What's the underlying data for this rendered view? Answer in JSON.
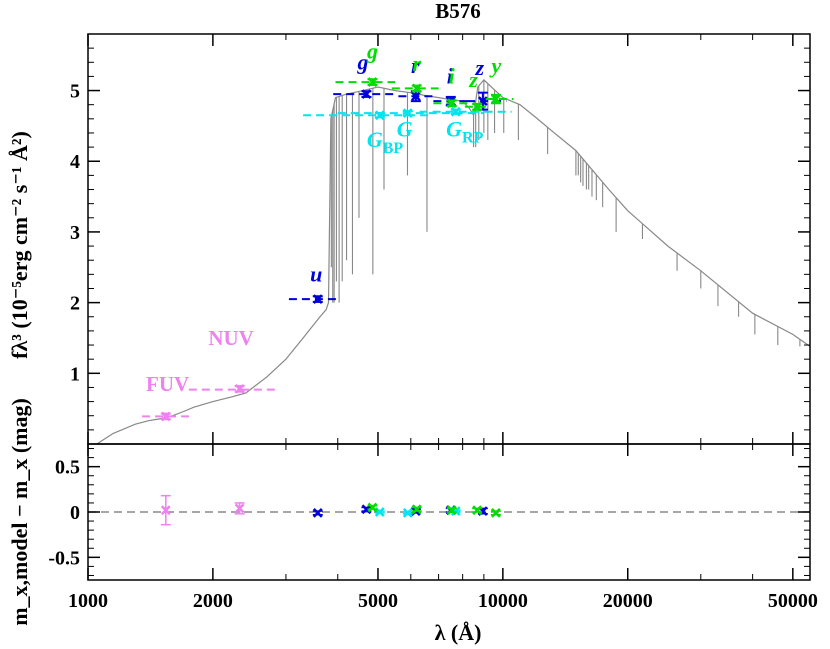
{
  "chart_data": [
    {
      "panel": "top",
      "type": "line",
      "title": "B576",
      "ylabel": "fλ³ (10⁻⁵erg cm⁻² s⁻¹ Å²)",
      "xscale": "log",
      "xlim": [
        1000,
        55000
      ],
      "ylim": [
        0,
        5.8
      ],
      "y_ticks": [
        1,
        2,
        3,
        4,
        5
      ],
      "colors": {
        "model": "#888888",
        "galex": "#ee82ee",
        "sdss": "#0000dd",
        "gaia": "#00e5ee",
        "ps1": "#00dd00"
      },
      "model_spectrum": {
        "continuum": [
          [
            1050,
            0.0
          ],
          [
            1150,
            0.15
          ],
          [
            1300,
            0.28
          ],
          [
            1400,
            0.33
          ],
          [
            1500,
            0.36
          ],
          [
            1600,
            0.4
          ],
          [
            1700,
            0.46
          ],
          [
            1800,
            0.52
          ],
          [
            2000,
            0.6
          ],
          [
            2200,
            0.66
          ],
          [
            2400,
            0.72
          ],
          [
            2500,
            0.8
          ],
          [
            2700,
            0.95
          ],
          [
            3000,
            1.2
          ],
          [
            3300,
            1.5
          ],
          [
            3600,
            1.78
          ],
          [
            3750,
            1.9
          ],
          [
            3800,
            2.0
          ],
          [
            3850,
            4.6
          ],
          [
            3950,
            4.9
          ],
          [
            4200,
            4.95
          ],
          [
            4600,
            5.0
          ],
          [
            5000,
            5.05
          ],
          [
            5500,
            5.0
          ],
          [
            6000,
            4.97
          ],
          [
            6500,
            4.93
          ],
          [
            7000,
            4.9
          ],
          [
            7500,
            4.87
          ],
          [
            8000,
            4.85
          ],
          [
            8300,
            4.75
          ],
          [
            8500,
            4.65
          ],
          [
            8700,
            5.05
          ],
          [
            9000,
            5.15
          ],
          [
            9500,
            5.02
          ],
          [
            10000,
            4.9
          ],
          [
            11000,
            4.8
          ],
          [
            12000,
            4.62
          ],
          [
            13000,
            4.45
          ],
          [
            15000,
            4.15
          ],
          [
            18000,
            3.6
          ],
          [
            20000,
            3.3
          ],
          [
            25000,
            2.8
          ],
          [
            30000,
            2.45
          ],
          [
            40000,
            1.85
          ],
          [
            50000,
            1.55
          ],
          [
            55000,
            1.38
          ]
        ],
        "absorption_lines": [
          [
            3860,
            2.5
          ],
          [
            3890,
            2.0
          ],
          [
            3920,
            2.0
          ],
          [
            3970,
            2.3
          ],
          [
            4030,
            2.0
          ],
          [
            4100,
            2.3
          ],
          [
            4200,
            2.6
          ],
          [
            4340,
            2.4
          ],
          [
            4500,
            3.2
          ],
          [
            4860,
            2.4
          ],
          [
            5170,
            3.6
          ],
          [
            5890,
            3.8
          ],
          [
            6563,
            3.0
          ],
          [
            8500,
            4.2
          ],
          [
            8600,
            4.2
          ],
          [
            8750,
            4.3
          ],
          [
            9000,
            4.4
          ],
          [
            9200,
            4.3
          ],
          [
            9550,
            4.4
          ],
          [
            10050,
            4.4
          ],
          [
            10900,
            4.3
          ],
          [
            12820,
            4.1
          ],
          [
            15000,
            3.8
          ],
          [
            15200,
            3.8
          ],
          [
            15400,
            3.7
          ],
          [
            15600,
            3.65
          ],
          [
            15900,
            3.6
          ],
          [
            16100,
            3.6
          ],
          [
            16400,
            3.5
          ],
          [
            16800,
            3.45
          ],
          [
            17400,
            3.35
          ],
          [
            18750,
            3.0
          ],
          [
            21700,
            2.9
          ],
          [
            26300,
            2.45
          ],
          [
            30000,
            2.2
          ],
          [
            33000,
            1.95
          ],
          [
            37000,
            1.8
          ],
          [
            40500,
            1.55
          ],
          [
            46000,
            1.4
          ],
          [
            52000,
            1.38
          ]
        ]
      },
      "photometry": [
        {
          "band": "FUV",
          "system": "galex",
          "wave": 1540,
          "lo": 1350,
          "hi": 1800,
          "model": 0.39,
          "obs": 0.39,
          "err": 0.04,
          "label_x": 1380,
          "label_y": 0.75
        },
        {
          "band": "NUV",
          "system": "galex",
          "wave": 2320,
          "lo": 1750,
          "hi": 2850,
          "model": 0.77,
          "obs": 0.78,
          "err": 0.04,
          "label_x": 1950,
          "label_y": 1.4
        },
        {
          "band": "u",
          "system": "sdss",
          "wave": 3580,
          "lo": 3050,
          "hi": 4000,
          "model": 2.05,
          "obs": 2.05,
          "err": 0.04,
          "label_x": 3550,
          "label_y": 2.3
        },
        {
          "band": "g",
          "system": "sdss",
          "wave": 4690,
          "lo": 3900,
          "hi": 5500,
          "model": 4.95,
          "obs": 4.95,
          "err": 0.04,
          "label_x": 4600,
          "label_y": 5.3
        },
        {
          "band": "r",
          "system": "sdss",
          "wave": 6170,
          "lo": 5600,
          "hi": 6900,
          "model": 4.92,
          "obs": 4.92,
          "err": 0.07,
          "label_x": 6150,
          "label_y": 5.25
        },
        {
          "band": "i",
          "system": "sdss",
          "wave": 7490,
          "lo": 6800,
          "hi": 8300,
          "model": 4.85,
          "obs": 4.85,
          "err": 0.06,
          "label_x": 7450,
          "label_y": 5.1
        },
        {
          "band": "z",
          "system": "sdss",
          "wave": 8950,
          "lo": 8200,
          "hi": 10200,
          "model": 4.85,
          "obs": 4.85,
          "err": 0.12,
          "label_x": 8800,
          "label_y": 5.22
        },
        {
          "band": "G_BP",
          "system": "gaia",
          "wave": 5050,
          "lo": 3300,
          "hi": 6700,
          "model": 4.65,
          "obs": 4.65,
          "err": 0.03,
          "label_x": 4700,
          "label_y": 4.2
        },
        {
          "band": "G",
          "system": "gaia",
          "wave": 5900,
          "lo": 4000,
          "hi": 9000,
          "model": 4.68,
          "obs": 4.68,
          "err": 0.03,
          "label_x": 5800,
          "label_y": 4.35
        },
        {
          "band": "G_RP",
          "system": "gaia",
          "wave": 7700,
          "lo": 6300,
          "hi": 10500,
          "model": 4.7,
          "obs": 4.7,
          "err": 0.03,
          "label_x": 7300,
          "label_y": 4.35
        },
        {
          "band": "g",
          "system": "ps1",
          "wave": 4850,
          "lo": 3950,
          "hi": 5500,
          "model": 5.12,
          "obs": 5.12,
          "err": 0.04,
          "label_x": 4850,
          "label_y": 5.45
        },
        {
          "band": "r",
          "system": "ps1",
          "wave": 6200,
          "lo": 5400,
          "hi": 7000,
          "model": 5.03,
          "obs": 5.03,
          "err": 0.04,
          "label_x": 6200,
          "label_y": 5.28
        },
        {
          "band": "i",
          "system": "ps1",
          "wave": 7530,
          "lo": 6800,
          "hi": 8300,
          "model": 4.82,
          "obs": 4.82,
          "err": 0.04,
          "label_x": 7530,
          "label_y": 5.1
        },
        {
          "band": "z",
          "system": "ps1",
          "wave": 8670,
          "lo": 8100,
          "hi": 9300,
          "model": 4.77,
          "obs": 4.77,
          "err": 0.04,
          "label_x": 8500,
          "label_y": 5.05
        },
        {
          "band": "y",
          "system": "ps1",
          "wave": 9620,
          "lo": 9100,
          "hi": 10600,
          "model": 4.88,
          "obs": 4.88,
          "err": 0.06,
          "label_x": 9650,
          "label_y": 5.25
        }
      ]
    },
    {
      "panel": "bottom",
      "type": "scatter",
      "ylabel": "m_x,model − m_x (mag)",
      "xlabel": "λ (Å)",
      "xscale": "log",
      "xlim": [
        1000,
        55000
      ],
      "ylim": [
        -0.75,
        0.75
      ],
      "y_ticks": [
        -0.5,
        0,
        0.5
      ],
      "y_tick_labels": [
        "-0.5",
        "0",
        "0.5"
      ],
      "x_ticks": [
        1000,
        2000,
        5000,
        10000,
        20000,
        50000
      ],
      "x_tick_labels": [
        "1000",
        "2000",
        "5000",
        "10000",
        "20000",
        "50000"
      ],
      "zero_line": 0,
      "residuals": [
        {
          "band": "FUV",
          "system": "galex",
          "wave": 1540,
          "res": 0.02,
          "err": 0.16
        },
        {
          "band": "NUV",
          "system": "galex",
          "wave": 2320,
          "res": 0.04,
          "err": 0.06
        },
        {
          "band": "u",
          "system": "sdss",
          "wave": 3580,
          "res": -0.01,
          "err": 0.02
        },
        {
          "band": "g",
          "system": "sdss",
          "wave": 4690,
          "res": 0.03,
          "err": 0.02
        },
        {
          "band": "r",
          "system": "sdss",
          "wave": 6170,
          "res": 0.01,
          "err": 0.02
        },
        {
          "band": "i",
          "system": "sdss",
          "wave": 7490,
          "res": 0.02,
          "err": 0.02
        },
        {
          "band": "z",
          "system": "sdss",
          "wave": 8950,
          "res": 0.01,
          "err": 0.03
        },
        {
          "band": "G_BP",
          "system": "gaia",
          "wave": 5050,
          "res": 0.0,
          "err": 0.01
        },
        {
          "band": "G",
          "system": "gaia",
          "wave": 5900,
          "res": -0.01,
          "err": 0.01
        },
        {
          "band": "G_RP",
          "system": "gaia",
          "wave": 7700,
          "res": 0.01,
          "err": 0.01
        },
        {
          "band": "g",
          "system": "ps1",
          "wave": 4850,
          "res": 0.05,
          "err": 0.02
        },
        {
          "band": "r",
          "system": "ps1",
          "wave": 6200,
          "res": 0.03,
          "err": 0.02
        },
        {
          "band": "i",
          "system": "ps1",
          "wave": 7530,
          "res": 0.02,
          "err": 0.02
        },
        {
          "band": "z",
          "system": "ps1",
          "wave": 8670,
          "res": 0.02,
          "err": 0.02
        },
        {
          "band": "y",
          "system": "ps1",
          "wave": 9620,
          "res": -0.01,
          "err": 0.02
        }
      ]
    }
  ]
}
